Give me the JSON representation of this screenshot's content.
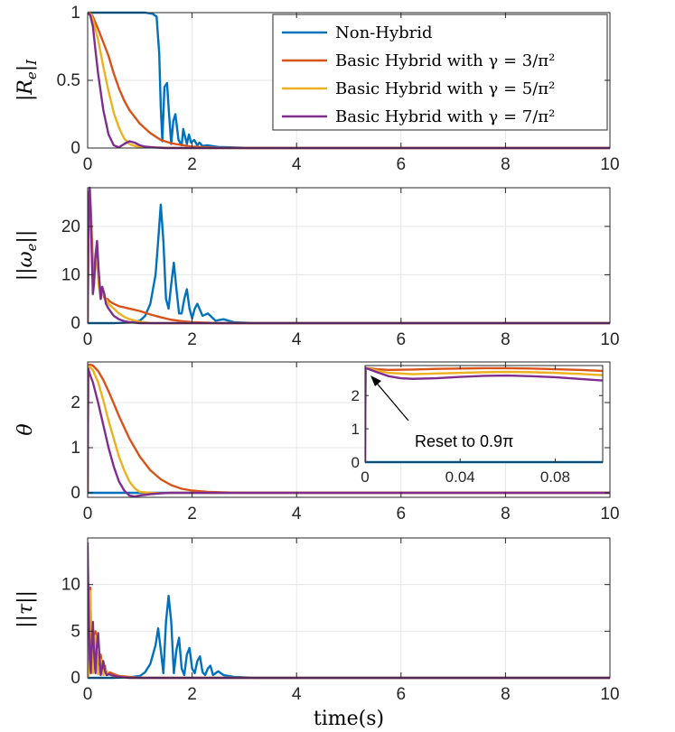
{
  "chart_data": [
    {
      "type": "line",
      "panel": 1,
      "ylabel": "|R_e|_I",
      "xlim": [
        0,
        10
      ],
      "ylim": [
        0,
        1
      ],
      "x_ticks": [
        "0",
        "2",
        "4",
        "6",
        "8",
        "10"
      ],
      "y_ticks": [
        "0",
        "0.5",
        "1"
      ],
      "y_tick_values": [
        0,
        0.5,
        1
      ],
      "grid": true,
      "legend_position": "top-right",
      "series": [
        {
          "name": "Non-Hybrid",
          "color": "#0072BD",
          "x": [
            0,
            0.3,
            0.6,
            0.9,
            1.1,
            1.25,
            1.32,
            1.37,
            1.4,
            1.43,
            1.47,
            1.52,
            1.55,
            1.6,
            1.64,
            1.68,
            1.74,
            1.8,
            1.83,
            1.9,
            1.94,
            1.98,
            2.04,
            2.1,
            2.14,
            2.2,
            2.3,
            2.5,
            3,
            4,
            10
          ],
          "y": [
            1,
            1,
            1,
            1,
            1,
            0.99,
            0.97,
            0.7,
            0.3,
            0.05,
            0.45,
            0.48,
            0.3,
            0.03,
            0.2,
            0.25,
            0.06,
            0.02,
            0.14,
            0.03,
            0.1,
            0.04,
            0.06,
            0.02,
            0.04,
            0.015,
            0.02,
            0.008,
            0.002,
            0,
            0
          ]
        },
        {
          "name": "Basic Hybrid with γ = 3/π²",
          "color": "#D95319",
          "x": [
            0,
            0.05,
            0.1,
            0.2,
            0.3,
            0.4,
            0.5,
            0.6,
            0.7,
            0.8,
            1.0,
            1.2,
            1.4,
            1.6,
            2.0,
            2.5,
            3.0,
            10
          ],
          "y": [
            1,
            1,
            0.97,
            0.88,
            0.78,
            0.68,
            0.55,
            0.44,
            0.35,
            0.28,
            0.18,
            0.11,
            0.06,
            0.035,
            0.01,
            0.002,
            0,
            0
          ]
        },
        {
          "name": "Basic Hybrid with γ = 5/π²",
          "color": "#EDB120",
          "x": [
            0,
            0.05,
            0.1,
            0.2,
            0.3,
            0.4,
            0.5,
            0.6,
            0.7,
            0.8,
            0.9,
            1.0,
            1.2,
            1.5,
            2.0,
            10
          ],
          "y": [
            1,
            1,
            0.95,
            0.8,
            0.6,
            0.42,
            0.26,
            0.15,
            0.07,
            0.03,
            0.015,
            0.01,
            0.005,
            0.002,
            0,
            0
          ]
        },
        {
          "name": "Basic Hybrid with γ = 7/π²",
          "color": "#7E2F8E",
          "x": [
            0,
            0.05,
            0.1,
            0.15,
            0.2,
            0.3,
            0.4,
            0.5,
            0.6,
            0.7,
            0.8,
            0.9,
            1.0,
            1.1,
            1.3,
            1.5,
            2.0,
            10
          ],
          "y": [
            1,
            0.98,
            0.9,
            0.72,
            0.55,
            0.28,
            0.1,
            0.02,
            0.005,
            0.03,
            0.05,
            0.04,
            0.02,
            0.01,
            0.004,
            0,
            0,
            0
          ]
        }
      ]
    },
    {
      "type": "line",
      "panel": 2,
      "ylabel": "||ω_e||",
      "xlim": [
        0,
        10
      ],
      "ylim": [
        0,
        28
      ],
      "x_ticks": [
        "0",
        "2",
        "4",
        "6",
        "8",
        "10"
      ],
      "y_ticks": [
        "0",
        "10",
        "20"
      ],
      "y_tick_values": [
        0,
        10,
        20
      ],
      "grid": true,
      "series": [
        {
          "name": "Non-Hybrid",
          "color": "#0072BD",
          "x": [
            0,
            0.5,
            0.8,
            1.0,
            1.1,
            1.2,
            1.3,
            1.35,
            1.4,
            1.45,
            1.5,
            1.55,
            1.6,
            1.65,
            1.7,
            1.75,
            1.8,
            1.85,
            1.9,
            1.95,
            2.0,
            2.05,
            2.1,
            2.2,
            2.3,
            2.45,
            2.6,
            2.8,
            3.2,
            10
          ],
          "y": [
            0,
            0,
            0.1,
            0.5,
            1.5,
            4,
            10,
            17,
            24.5,
            17,
            5,
            3,
            8,
            12.5,
            7,
            2,
            2,
            5,
            7,
            3,
            1,
            3,
            4,
            1.5,
            2,
            0.5,
            0.8,
            0.2,
            0,
            0
          ]
        },
        {
          "name": "Basic Hybrid with γ = 3/π²",
          "color": "#D95319",
          "x": [
            0,
            0.02,
            0.04,
            0.06,
            0.08,
            0.1,
            0.12,
            0.15,
            0.18,
            0.21,
            0.25,
            0.28,
            0.3,
            0.33,
            0.38,
            0.42,
            0.5,
            0.6,
            0.8,
            1.0,
            1.2,
            1.4,
            1.6,
            1.8,
            2.0,
            2.5,
            10
          ],
          "y": [
            0,
            22,
            27,
            24,
            18,
            12,
            8,
            14,
            16,
            10,
            6,
            7,
            6,
            5,
            5,
            4.5,
            4,
            3.5,
            3,
            2.5,
            1.8,
            1.2,
            0.7,
            0.4,
            0.2,
            0,
            0
          ]
        },
        {
          "name": "Basic Hybrid with γ = 5/π²",
          "color": "#EDB120",
          "x": [
            0,
            0.02,
            0.04,
            0.06,
            0.08,
            0.1,
            0.12,
            0.15,
            0.18,
            0.21,
            0.25,
            0.28,
            0.3,
            0.35,
            0.4,
            0.5,
            0.6,
            0.7,
            0.8,
            1.0,
            1.2,
            10
          ],
          "y": [
            0,
            25,
            28,
            23,
            15,
            9,
            8,
            12,
            13,
            8,
            5,
            7,
            6,
            5,
            4,
            3,
            2,
            1.3,
            0.8,
            0.3,
            0,
            0
          ]
        },
        {
          "name": "Basic Hybrid with γ = 7/π²",
          "color": "#7E2F8E",
          "x": [
            0,
            0.02,
            0.04,
            0.06,
            0.08,
            0.1,
            0.12,
            0.15,
            0.18,
            0.21,
            0.25,
            0.28,
            0.32,
            0.35,
            0.4,
            0.5,
            0.6,
            0.7,
            0.8,
            1.0,
            10
          ],
          "y": [
            0,
            26,
            28,
            22,
            14,
            6,
            8,
            14,
            17,
            11,
            5,
            7.5,
            6,
            4,
            3,
            1.5,
            0.8,
            0.4,
            0.2,
            0,
            0
          ]
        }
      ]
    },
    {
      "type": "line",
      "panel": 3,
      "ylabel": "θ",
      "xlim": [
        0,
        10
      ],
      "ylim": [
        -0.1,
        2.9
      ],
      "x_ticks": [
        "0",
        "2",
        "4",
        "6",
        "8",
        "10"
      ],
      "y_ticks": [
        "0",
        "1",
        "2"
      ],
      "y_tick_values": [
        0,
        1,
        2
      ],
      "grid": true,
      "series": [
        {
          "name": "Non-Hybrid",
          "color": "#0072BD",
          "x": [
            0,
            10
          ],
          "y": [
            0,
            0
          ]
        },
        {
          "name": "Basic Hybrid with γ = 3/π²",
          "color": "#D95319",
          "x": [
            0,
            0.01,
            0.05,
            0.1,
            0.2,
            0.3,
            0.4,
            0.5,
            0.6,
            0.8,
            1.0,
            1.2,
            1.4,
            1.6,
            1.8,
            2.0,
            2.3,
            2.6,
            3.0,
            10
          ],
          "y": [
            0,
            2.83,
            2.84,
            2.82,
            2.7,
            2.5,
            2.25,
            1.98,
            1.7,
            1.2,
            0.8,
            0.5,
            0.3,
            0.17,
            0.09,
            0.05,
            0.02,
            0.01,
            0,
            0
          ]
        },
        {
          "name": "Basic Hybrid with γ = 5/π²",
          "color": "#EDB120",
          "x": [
            0,
            0.01,
            0.05,
            0.1,
            0.2,
            0.3,
            0.4,
            0.5,
            0.6,
            0.7,
            0.8,
            0.9,
            1.0,
            1.2,
            1.4,
            1.6,
            10
          ],
          "y": [
            0,
            2.8,
            2.78,
            2.72,
            2.45,
            2.05,
            1.6,
            1.2,
            0.8,
            0.5,
            0.25,
            0.1,
            0.02,
            0,
            -0.01,
            0,
            0
          ]
        },
        {
          "name": "Basic Hybrid with γ = 7/π²",
          "color": "#7E2F8E",
          "x": [
            0,
            0.01,
            0.05,
            0.1,
            0.2,
            0.3,
            0.4,
            0.5,
            0.6,
            0.7,
            0.8,
            0.9,
            1.0,
            1.2,
            1.4,
            1.6,
            2.0,
            10
          ],
          "y": [
            0,
            2.75,
            2.6,
            2.45,
            2.0,
            1.5,
            1.0,
            0.58,
            0.25,
            0.05,
            -0.06,
            -0.08,
            -0.06,
            -0.03,
            -0.01,
            0,
            0,
            0
          ]
        }
      ],
      "inset": {
        "xlim": [
          0,
          0.1
        ],
        "ylim": [
          0,
          2.9
        ],
        "x_ticks": [
          "0",
          "0.04",
          "0.08"
        ],
        "x_tick_values": [
          0,
          0.04,
          0.08
        ],
        "y_ticks": [
          "0",
          "1",
          "2"
        ],
        "y_tick_values": [
          0,
          1,
          2
        ],
        "annotation": "Reset to 0.9π",
        "series": [
          {
            "name": "Non-Hybrid",
            "color": "#0072BD",
            "x": [
              0,
              0.1
            ],
            "y": [
              0,
              0
            ]
          },
          {
            "name": "Basic Hybrid with γ = 3/π²",
            "color": "#D95319",
            "x": [
              0,
              0.0002,
              0.005,
              0.01,
              0.02,
              0.03,
              0.04,
              0.05,
              0.06,
              0.07,
              0.08,
              0.09,
              0.1
            ],
            "y": [
              0,
              2.83,
              2.79,
              2.77,
              2.78,
              2.8,
              2.81,
              2.82,
              2.82,
              2.81,
              2.79,
              2.77,
              2.74
            ]
          },
          {
            "name": "Basic Hybrid with γ = 5/π²",
            "color": "#EDB120",
            "x": [
              0,
              0.0002,
              0.005,
              0.01,
              0.02,
              0.03,
              0.04,
              0.05,
              0.06,
              0.07,
              0.08,
              0.09,
              0.1
            ],
            "y": [
              0,
              2.83,
              2.75,
              2.68,
              2.64,
              2.66,
              2.68,
              2.7,
              2.71,
              2.7,
              2.68,
              2.65,
              2.61
            ]
          },
          {
            "name": "Basic Hybrid with γ = 7/π²",
            "color": "#7E2F8E",
            "x": [
              0,
              0.0002,
              0.005,
              0.01,
              0.015,
              0.02,
              0.03,
              0.04,
              0.05,
              0.06,
              0.07,
              0.08,
              0.09,
              0.1
            ],
            "y": [
              0,
              2.83,
              2.7,
              2.58,
              2.52,
              2.5,
              2.52,
              2.56,
              2.59,
              2.6,
              2.58,
              2.55,
              2.5,
              2.45
            ]
          }
        ]
      }
    },
    {
      "type": "line",
      "panel": 4,
      "ylabel": "||τ||",
      "xlabel": "time(s)",
      "xlim": [
        0,
        10
      ],
      "ylim": [
        0,
        15
      ],
      "x_ticks": [
        "0",
        "2",
        "4",
        "6",
        "8",
        "10"
      ],
      "y_ticks": [
        "0",
        "5",
        "10"
      ],
      "y_tick_values": [
        0,
        5,
        10
      ],
      "grid": true,
      "series": [
        {
          "name": "Non-Hybrid",
          "color": "#0072BD",
          "x": [
            0,
            0.5,
            0.8,
            1.0,
            1.1,
            1.2,
            1.3,
            1.35,
            1.4,
            1.45,
            1.5,
            1.55,
            1.6,
            1.65,
            1.7,
            1.75,
            1.8,
            1.85,
            1.9,
            1.95,
            2.0,
            2.05,
            2.1,
            2.15,
            2.2,
            2.25,
            2.3,
            2.35,
            2.4,
            2.5,
            2.6,
            2.8,
            3.2,
            10
          ],
          "y": [
            0,
            0,
            0.05,
            0.2,
            0.6,
            1.5,
            3.5,
            5.3,
            3,
            0.5,
            6,
            8.8,
            6,
            0.5,
            3,
            4.3,
            1,
            0.3,
            2.5,
            3.2,
            1,
            0.5,
            1.8,
            2.3,
            0.6,
            0.3,
            1,
            1.3,
            0.3,
            0.7,
            0.3,
            0.1,
            0,
            0
          ]
        },
        {
          "name": "Basic Hybrid with γ = 3/π²",
          "color": "#D95319",
          "x": [
            0,
            0.01,
            0.03,
            0.05,
            0.07,
            0.1,
            0.13,
            0.15,
            0.17,
            0.2,
            0.23,
            0.25,
            0.28,
            0.3,
            0.33,
            0.35,
            0.38,
            0.42,
            0.5,
            0.6,
            0.8,
            1.0,
            10
          ],
          "y": [
            0,
            0.2,
            7,
            9.7,
            4,
            0.6,
            3,
            5,
            3,
            0.5,
            1.5,
            2.5,
            1,
            0.4,
            1.3,
            0.8,
            0.3,
            0.6,
            0.4,
            0.2,
            0.1,
            0,
            0
          ]
        },
        {
          "name": "Basic Hybrid with γ = 5/π²",
          "color": "#EDB120",
          "x": [
            0,
            0.01,
            0.03,
            0.05,
            0.07,
            0.1,
            0.13,
            0.15,
            0.17,
            0.2,
            0.23,
            0.25,
            0.28,
            0.3,
            0.33,
            0.36,
            0.4,
            0.5,
            0.6,
            0.8,
            10
          ],
          "y": [
            0,
            0.5,
            9,
            9.3,
            4,
            0.5,
            3.5,
            4.5,
            2.5,
            0.4,
            1.3,
            2,
            0.8,
            0.3,
            1.1,
            0.5,
            0.4,
            0.2,
            0.1,
            0,
            0
          ]
        },
        {
          "name": "Basic Hybrid with γ = 7/π²",
          "color": "#7E2F8E",
          "x": [
            0,
            0.005,
            0.02,
            0.04,
            0.06,
            0.08,
            0.1,
            0.12,
            0.15,
            0.17,
            0.2,
            0.23,
            0.25,
            0.28,
            0.3,
            0.33,
            0.36,
            0.4,
            0.5,
            0.6,
            0.8,
            10
          ],
          "y": [
            14.5,
            12,
            7,
            2,
            0.5,
            4,
            6,
            3,
            0.5,
            3,
            4.8,
            2,
            0.3,
            1.2,
            1.8,
            0.8,
            0.3,
            0.4,
            0.2,
            0.1,
            0,
            0
          ]
        }
      ]
    }
  ]
}
